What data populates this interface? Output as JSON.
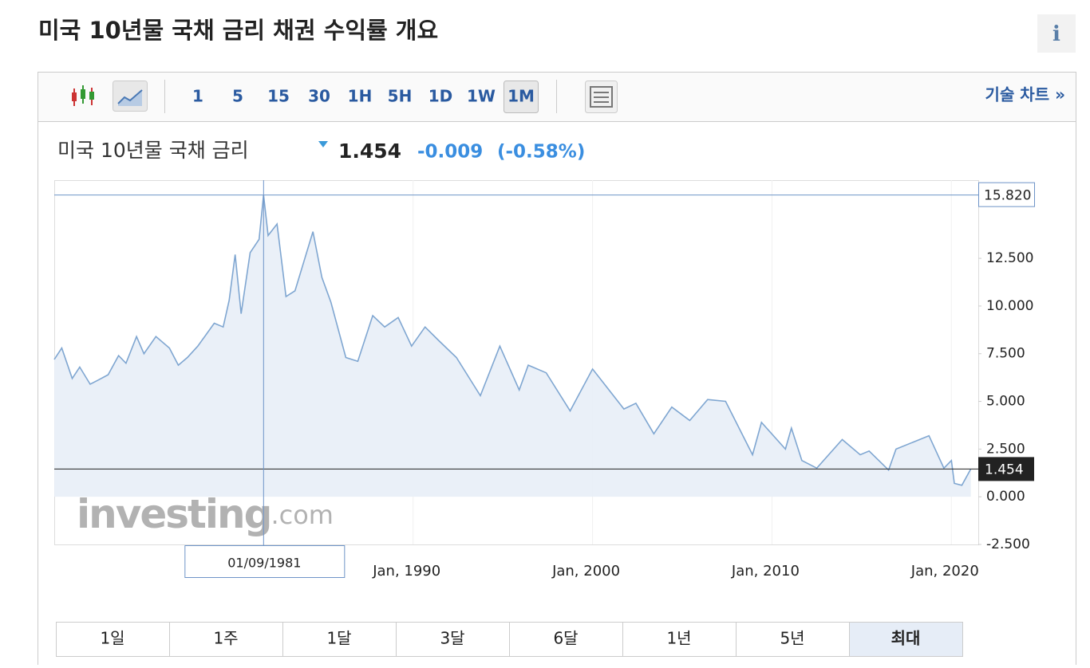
{
  "header": {
    "title": "미국 10년물 국채 금리  채권 수익률 개요",
    "info": "i"
  },
  "toolbar": {
    "intervals": [
      "1",
      "5",
      "15",
      "30",
      "1H",
      "5H",
      "1D",
      "1W",
      "1M"
    ],
    "active_interval": "1M",
    "tech_chart": "기술 차트 »"
  },
  "quote": {
    "name": "미국 10년물 국채 금리",
    "price": "1.454",
    "change": "-0.009",
    "change_pct": "(-0.58%)"
  },
  "watermark": {
    "brand": "investing",
    "suffix": ".com"
  },
  "chart_data": {
    "type": "line",
    "x": [
      "1970-01",
      "1970-06",
      "1971-01",
      "1971-06",
      "1972-01",
      "1972-06",
      "1973-01",
      "1973-08",
      "1974-01",
      "1974-08",
      "1975-01",
      "1975-09",
      "1976-06",
      "1976-12",
      "1977-06",
      "1978-01",
      "1978-12",
      "1979-06",
      "1979-10",
      "1980-02",
      "1980-06",
      "1980-12",
      "1981-06",
      "1981-09",
      "1981-12",
      "1982-06",
      "1982-12",
      "1983-06",
      "1984-06",
      "1984-12",
      "1985-06",
      "1986-04",
      "1986-12",
      "1987-10",
      "1988-06",
      "1989-03",
      "1989-12",
      "1990-09",
      "1991-06",
      "1992-06",
      "1993-10",
      "1994-11",
      "1995-12",
      "1996-06",
      "1997-06",
      "1998-10",
      "2000-01",
      "2001-10",
      "2002-06",
      "2003-06",
      "2004-06",
      "2005-06",
      "2006-06",
      "2007-06",
      "2008-12",
      "2009-06",
      "2010-10",
      "2011-02",
      "2011-09",
      "2012-07",
      "2013-12",
      "2014-12",
      "2015-06",
      "2016-07",
      "2016-12",
      "2018-10",
      "2019-08",
      "2020-01",
      "2020-03",
      "2020-08",
      "2021-02"
    ],
    "series": [
      {
        "name": "미국 10년물 국채 금리",
        "color": "#7fa6d1",
        "values": [
          7.2,
          7.8,
          6.2,
          6.8,
          5.9,
          6.1,
          6.4,
          7.4,
          7.0,
          8.4,
          7.5,
          8.4,
          7.8,
          6.9,
          7.3,
          7.9,
          9.1,
          8.9,
          10.3,
          12.7,
          9.6,
          12.8,
          13.5,
          15.82,
          13.7,
          14.3,
          10.5,
          10.8,
          13.9,
          11.5,
          10.2,
          7.3,
          7.1,
          9.5,
          8.9,
          9.4,
          7.9,
          8.9,
          8.2,
          7.3,
          5.3,
          7.9,
          5.6,
          6.9,
          6.5,
          4.5,
          6.7,
          4.6,
          4.9,
          3.3,
          4.7,
          4.0,
          5.1,
          5.0,
          2.2,
          3.9,
          2.5,
          3.6,
          1.9,
          1.5,
          3.0,
          2.2,
          2.4,
          1.4,
          2.5,
          3.2,
          1.5,
          1.9,
          0.7,
          0.6,
          1.454
        ]
      }
    ],
    "xlim": [
      "1970-01",
      "2021-07"
    ],
    "xticks": [
      {
        "value": "1990-01",
        "label": "Jan, 1990"
      },
      {
        "value": "2000-01",
        "label": "Jan, 2000"
      },
      {
        "value": "2010-01",
        "label": "Jan, 2010"
      },
      {
        "value": "2020-01",
        "label": "Jan, 2020"
      }
    ],
    "ylim": [
      -2.5,
      16.6
    ],
    "yticks": [
      {
        "value": -2.5,
        "label": "-2.500"
      },
      {
        "value": 0,
        "label": "0.000"
      },
      {
        "value": 2.5,
        "label": "2.500"
      },
      {
        "value": 5,
        "label": "5.000"
      },
      {
        "value": 7.5,
        "label": "7.500"
      },
      {
        "value": 10,
        "label": "10.000"
      },
      {
        "value": 12.5,
        "label": "12.500"
      }
    ],
    "crosshair": {
      "x": "1981-09",
      "x_label": "01/09/1981",
      "value": 15.82,
      "value_label": "15.820"
    },
    "last": {
      "value": 1.454,
      "label": "1.454"
    },
    "grid": "x"
  },
  "ranges": {
    "items": [
      "1일",
      "1주",
      "1달",
      "3달",
      "6달",
      "1년",
      "5년",
      "최대"
    ],
    "active": "최대"
  }
}
